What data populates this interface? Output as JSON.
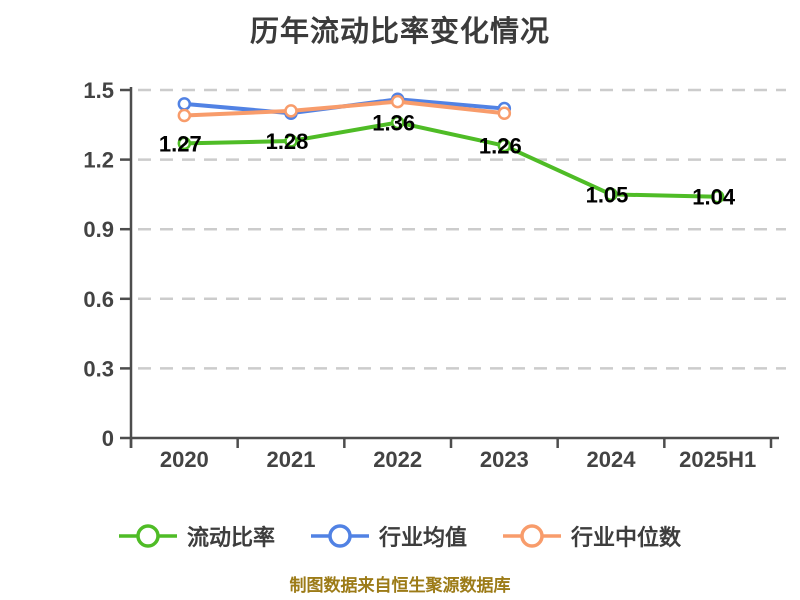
{
  "page": {
    "background_color": "#ffffff"
  },
  "chart_data": {
    "type": "line",
    "title": "历年流动比率变化情况",
    "footer": "制图数据来自恒生聚源数据库",
    "categories": [
      "2020",
      "2021",
      "2022",
      "2023",
      "2024",
      "2025H1"
    ],
    "series": [
      {
        "name": "流动比率",
        "color": "#4fbc26",
        "values": [
          1.27,
          1.28,
          1.36,
          1.26,
          1.05,
          1.04
        ],
        "data_labels": [
          "1.27",
          "1.28",
          "1.36",
          "1.26",
          "1.05",
          "1.04"
        ],
        "labeled": true
      },
      {
        "name": "行业均值",
        "color": "#5182e4",
        "values": [
          1.44,
          1.4,
          1.46,
          1.42,
          null,
          null
        ],
        "labeled": false
      },
      {
        "name": "行业中位数",
        "color": "#f89c6b",
        "values": [
          1.39,
          1.41,
          1.45,
          1.4,
          null,
          null
        ],
        "labeled": false
      }
    ],
    "ylim": [
      0,
      1.5
    ],
    "yticks": [
      0,
      0.3,
      0.6,
      0.9,
      1.2,
      1.5
    ],
    "ytick_labels": [
      "0",
      "0.3",
      "0.6",
      "0.9",
      "1.2",
      "1.5"
    ],
    "grid": "dashed",
    "legend_position": "bottom",
    "colors": {
      "grid_line": "#cccccc",
      "axis_line": "#4d4d4d",
      "tick_label": "#434343",
      "data_label": "#000000",
      "title": "#3b3b3b",
      "footer": "#9c7b17",
      "marker_fill": "#ffffff"
    }
  }
}
